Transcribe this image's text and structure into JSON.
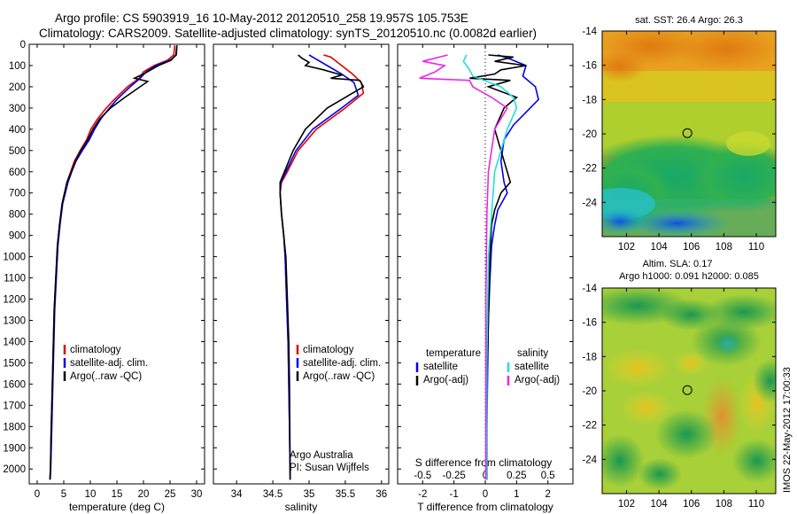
{
  "header": {
    "line1": "Argo profile: CS 5903919_16 10-May-2012 20120510_258 19.957S 105.753E",
    "line2": "Climatology: CARS2009. Satellite-adjusted climatology: synTS_20120510.nc (0.0082d earlier)"
  },
  "timestamp": "IMOS 22-May-2012 17:00:33",
  "colors": {
    "red": "#e00000",
    "blue": "#0000ee",
    "black": "#000000",
    "cyan": "#22dddd",
    "magenta": "#ee22ee"
  },
  "depth_ticks": [
    0,
    100,
    200,
    300,
    400,
    500,
    600,
    700,
    800,
    900,
    1000,
    1100,
    1200,
    1300,
    1400,
    1500,
    1600,
    1700,
    1800,
    1900,
    2000
  ],
  "chart_data": [
    {
      "type": "line",
      "xlabel": "temperature (deg C)",
      "xticks": [
        0,
        5,
        10,
        15,
        20,
        25,
        30
      ],
      "xlim": [
        -1.5,
        31.5
      ],
      "ylim": [
        2070,
        0
      ],
      "legend": [
        "climatology",
        "satellite-adj. clim.",
        "Argo(..raw -QC)"
      ],
      "series": [
        {
          "name": "climatology",
          "color": "red",
          "x": [
            25.9,
            25.7,
            24.5,
            22.0,
            20.0,
            19.2,
            17.0,
            14.5,
            13.0,
            11.4,
            10.1,
            9.3,
            8.1,
            7.0,
            6.3,
            5.6,
            4.7,
            4.2,
            3.8,
            3.5,
            3.2,
            3.0,
            2.8,
            2.6,
            2.5,
            2.4
          ],
          "y": [
            5,
            50,
            75,
            100,
            130,
            160,
            200,
            260,
            300,
            350,
            400,
            450,
            500,
            550,
            600,
            650,
            750,
            850,
            950,
            1100,
            1250,
            1450,
            1650,
            1850,
            2000,
            2050
          ]
        },
        {
          "name": "satellite-adj. clim.",
          "color": "blue",
          "x": [
            26.3,
            26.2,
            25.0,
            22.3,
            20.5,
            19.4,
            17.5,
            15.0,
            13.6,
            12.0,
            10.8,
            9.8,
            8.5,
            7.3,
            6.5,
            5.8,
            4.8,
            4.3,
            3.9,
            3.6,
            3.3,
            3.1,
            2.9,
            2.7,
            2.55,
            2.45
          ],
          "y": [
            5,
            50,
            75,
            100,
            130,
            160,
            200,
            260,
            300,
            350,
            400,
            450,
            500,
            550,
            600,
            650,
            750,
            850,
            950,
            1100,
            1250,
            1450,
            1650,
            1850,
            2000,
            2050
          ]
        },
        {
          "name": "Argo(..raw -QC)",
          "color": "black",
          "x": [
            26.3,
            26.1,
            25.2,
            22.8,
            20.0,
            18.3,
            20.8,
            16.5,
            13.8,
            11.8,
            10.5,
            9.5,
            8.2,
            7.2,
            6.4,
            5.6,
            4.7,
            4.2,
            3.8,
            3.5,
            3.2,
            3.0,
            2.8,
            2.6,
            2.5,
            2.4
          ],
          "y": [
            5,
            50,
            75,
            100,
            140,
            160,
            175,
            250,
            300,
            350,
            400,
            450,
            500,
            550,
            600,
            650,
            750,
            850,
            950,
            1100,
            1250,
            1450,
            1650,
            1850,
            2000,
            2050
          ]
        }
      ]
    },
    {
      "type": "line",
      "xlabel": "salinity",
      "xticks": [
        34,
        34.5,
        35,
        35.5,
        36
      ],
      "xlim": [
        33.68,
        36.1
      ],
      "ylim": [
        2070,
        0
      ],
      "legend": [
        "climatology",
        "satellite-adj. clim.",
        "Argo(..raw -QC)"
      ],
      "annotation": [
        "Argo Australia",
        "PI: Susan Wijffels"
      ],
      "series": [
        {
          "name": "climatology",
          "color": "red",
          "x": [
            35.2,
            35.3,
            35.45,
            35.6,
            35.72,
            35.75,
            35.5,
            35.1,
            34.85,
            34.7,
            34.62,
            34.6,
            34.62,
            34.65,
            34.67,
            34.69,
            34.71,
            34.72,
            34.73,
            34.74
          ],
          "y": [
            50,
            60,
            100,
            140,
            180,
            230,
            300,
            400,
            500,
            600,
            650,
            700,
            800,
            900,
            1000,
            1200,
            1400,
            1600,
            1800,
            2050
          ]
        },
        {
          "name": "satellite-adj. clim.",
          "color": "blue",
          "x": [
            35.0,
            35.05,
            35.25,
            35.45,
            35.62,
            35.68,
            35.45,
            35.05,
            34.82,
            34.68,
            34.61,
            34.6,
            34.62,
            34.65,
            34.67,
            34.69,
            34.71,
            34.72,
            34.73,
            34.74
          ],
          "y": [
            50,
            60,
            100,
            140,
            180,
            240,
            300,
            400,
            500,
            600,
            650,
            700,
            800,
            900,
            1000,
            1200,
            1400,
            1600,
            1800,
            2050
          ]
        },
        {
          "name": "Argo(..raw -QC)",
          "color": "black",
          "x": [
            34.85,
            34.9,
            35.0,
            34.95,
            35.2,
            35.45,
            35.3,
            35.7,
            35.75,
            35.6,
            35.25,
            34.95,
            34.78,
            34.66,
            34.6,
            34.6,
            34.62,
            34.65,
            34.68,
            34.7,
            34.72,
            34.73,
            34.74
          ],
          "y": [
            50,
            65,
            85,
            100,
            120,
            145,
            160,
            170,
            200,
            230,
            300,
            400,
            500,
            600,
            650,
            700,
            800,
            900,
            1000,
            1200,
            1400,
            1600,
            2050
          ]
        }
      ]
    },
    {
      "type": "line",
      "xlabel": "T difference from climatology",
      "xlabel_top": "S difference from climatology",
      "xticks": [
        -2,
        -1,
        0,
        1,
        2
      ],
      "xticks_top": [
        "-0.5",
        "-0.25",
        "0",
        "0.25",
        "0.5"
      ],
      "xlim": [
        -2.8,
        2.8
      ],
      "ylim": [
        2070,
        0
      ],
      "legend_left_title": "temperature",
      "legend_right_title": "salinity",
      "legend_left": [
        "satellite",
        "Argo(-adj)"
      ],
      "legend_right": [
        "satellite",
        "Argo(-adj)"
      ],
      "series": [
        {
          "name": "temperature satellite",
          "color": "blue",
          "x": [
            0.4,
            0.8,
            1.3,
            1.2,
            1.6,
            1.7,
            1.3,
            0.9,
            0.6,
            0.5,
            0.6,
            0.7,
            0.4,
            0.3,
            0.2,
            0.15,
            0.1,
            0.08,
            0.05,
            0.05
          ],
          "y": [
            50,
            70,
            100,
            150,
            200,
            260,
            320,
            380,
            450,
            550,
            650,
            700,
            780,
            850,
            950,
            1100,
            1300,
            1500,
            1800,
            2050
          ]
        },
        {
          "name": "temperature Argo(-adj)",
          "color": "black",
          "x": [
            0.1,
            0.9,
            0.3,
            1.3,
            0.5,
            0.3,
            -0.5,
            0.8,
            0.1,
            1.0,
            0.6,
            0.3,
            0.5,
            0.7,
            0.8,
            0.5,
            0.3,
            0.2,
            0.15,
            0.1,
            0.05,
            0.05
          ],
          "y": [
            50,
            60,
            80,
            100,
            120,
            140,
            160,
            170,
            200,
            250,
            300,
            400,
            500,
            600,
            650,
            700,
            780,
            850,
            1000,
            1300,
            1600,
            2050
          ]
        },
        {
          "name": "salinity satellite",
          "color": "cyan",
          "x": [
            -0.6,
            -0.7,
            -0.5,
            -0.4,
            0.5,
            0.9,
            1.0,
            0.7,
            0.5,
            0.3,
            0.2,
            0.1,
            0.05,
            0.05
          ],
          "y": [
            50,
            80,
            120,
            150,
            200,
            250,
            300,
            400,
            500,
            600,
            800,
            1000,
            1500,
            2050
          ]
        },
        {
          "name": "salinity Argo(-adj)",
          "color": "magenta",
          "x": [
            -1.2,
            -2.0,
            -1.3,
            -1.6,
            -2.1,
            -0.5,
            -0.4,
            0.2,
            0.7,
            0.3,
            0.1,
            0.05,
            0.02,
            0.02
          ],
          "y": [
            50,
            80,
            100,
            130,
            160,
            170,
            200,
            250,
            300,
            400,
            600,
            800,
            1200,
            2050
          ]
        }
      ]
    },
    {
      "type": "heatmap",
      "title": "sat. SST: 26.4 Argo: 26.3",
      "xticks": [
        102,
        104,
        106,
        108,
        110
      ],
      "yticks": [
        -14,
        -16,
        -18,
        -20,
        -22,
        -24
      ],
      "xlim": [
        100.5,
        111.2
      ],
      "ylim": [
        -26.0,
        -14.0
      ],
      "marker": {
        "lon": 105.753,
        "lat": -19.957
      }
    },
    {
      "type": "heatmap",
      "title": "Altim. SLA: 0.17",
      "subtitle": "Argo h1000: 0.091 h2000: 0.085",
      "xticks": [
        102,
        104,
        106,
        108,
        110
      ],
      "yticks": [
        -14,
        -16,
        -18,
        -20,
        -22,
        -24
      ],
      "xlim": [
        100.5,
        111.2
      ],
      "ylim": [
        -26.0,
        -14.0
      ],
      "marker": {
        "lon": 105.753,
        "lat": -19.957
      }
    }
  ]
}
